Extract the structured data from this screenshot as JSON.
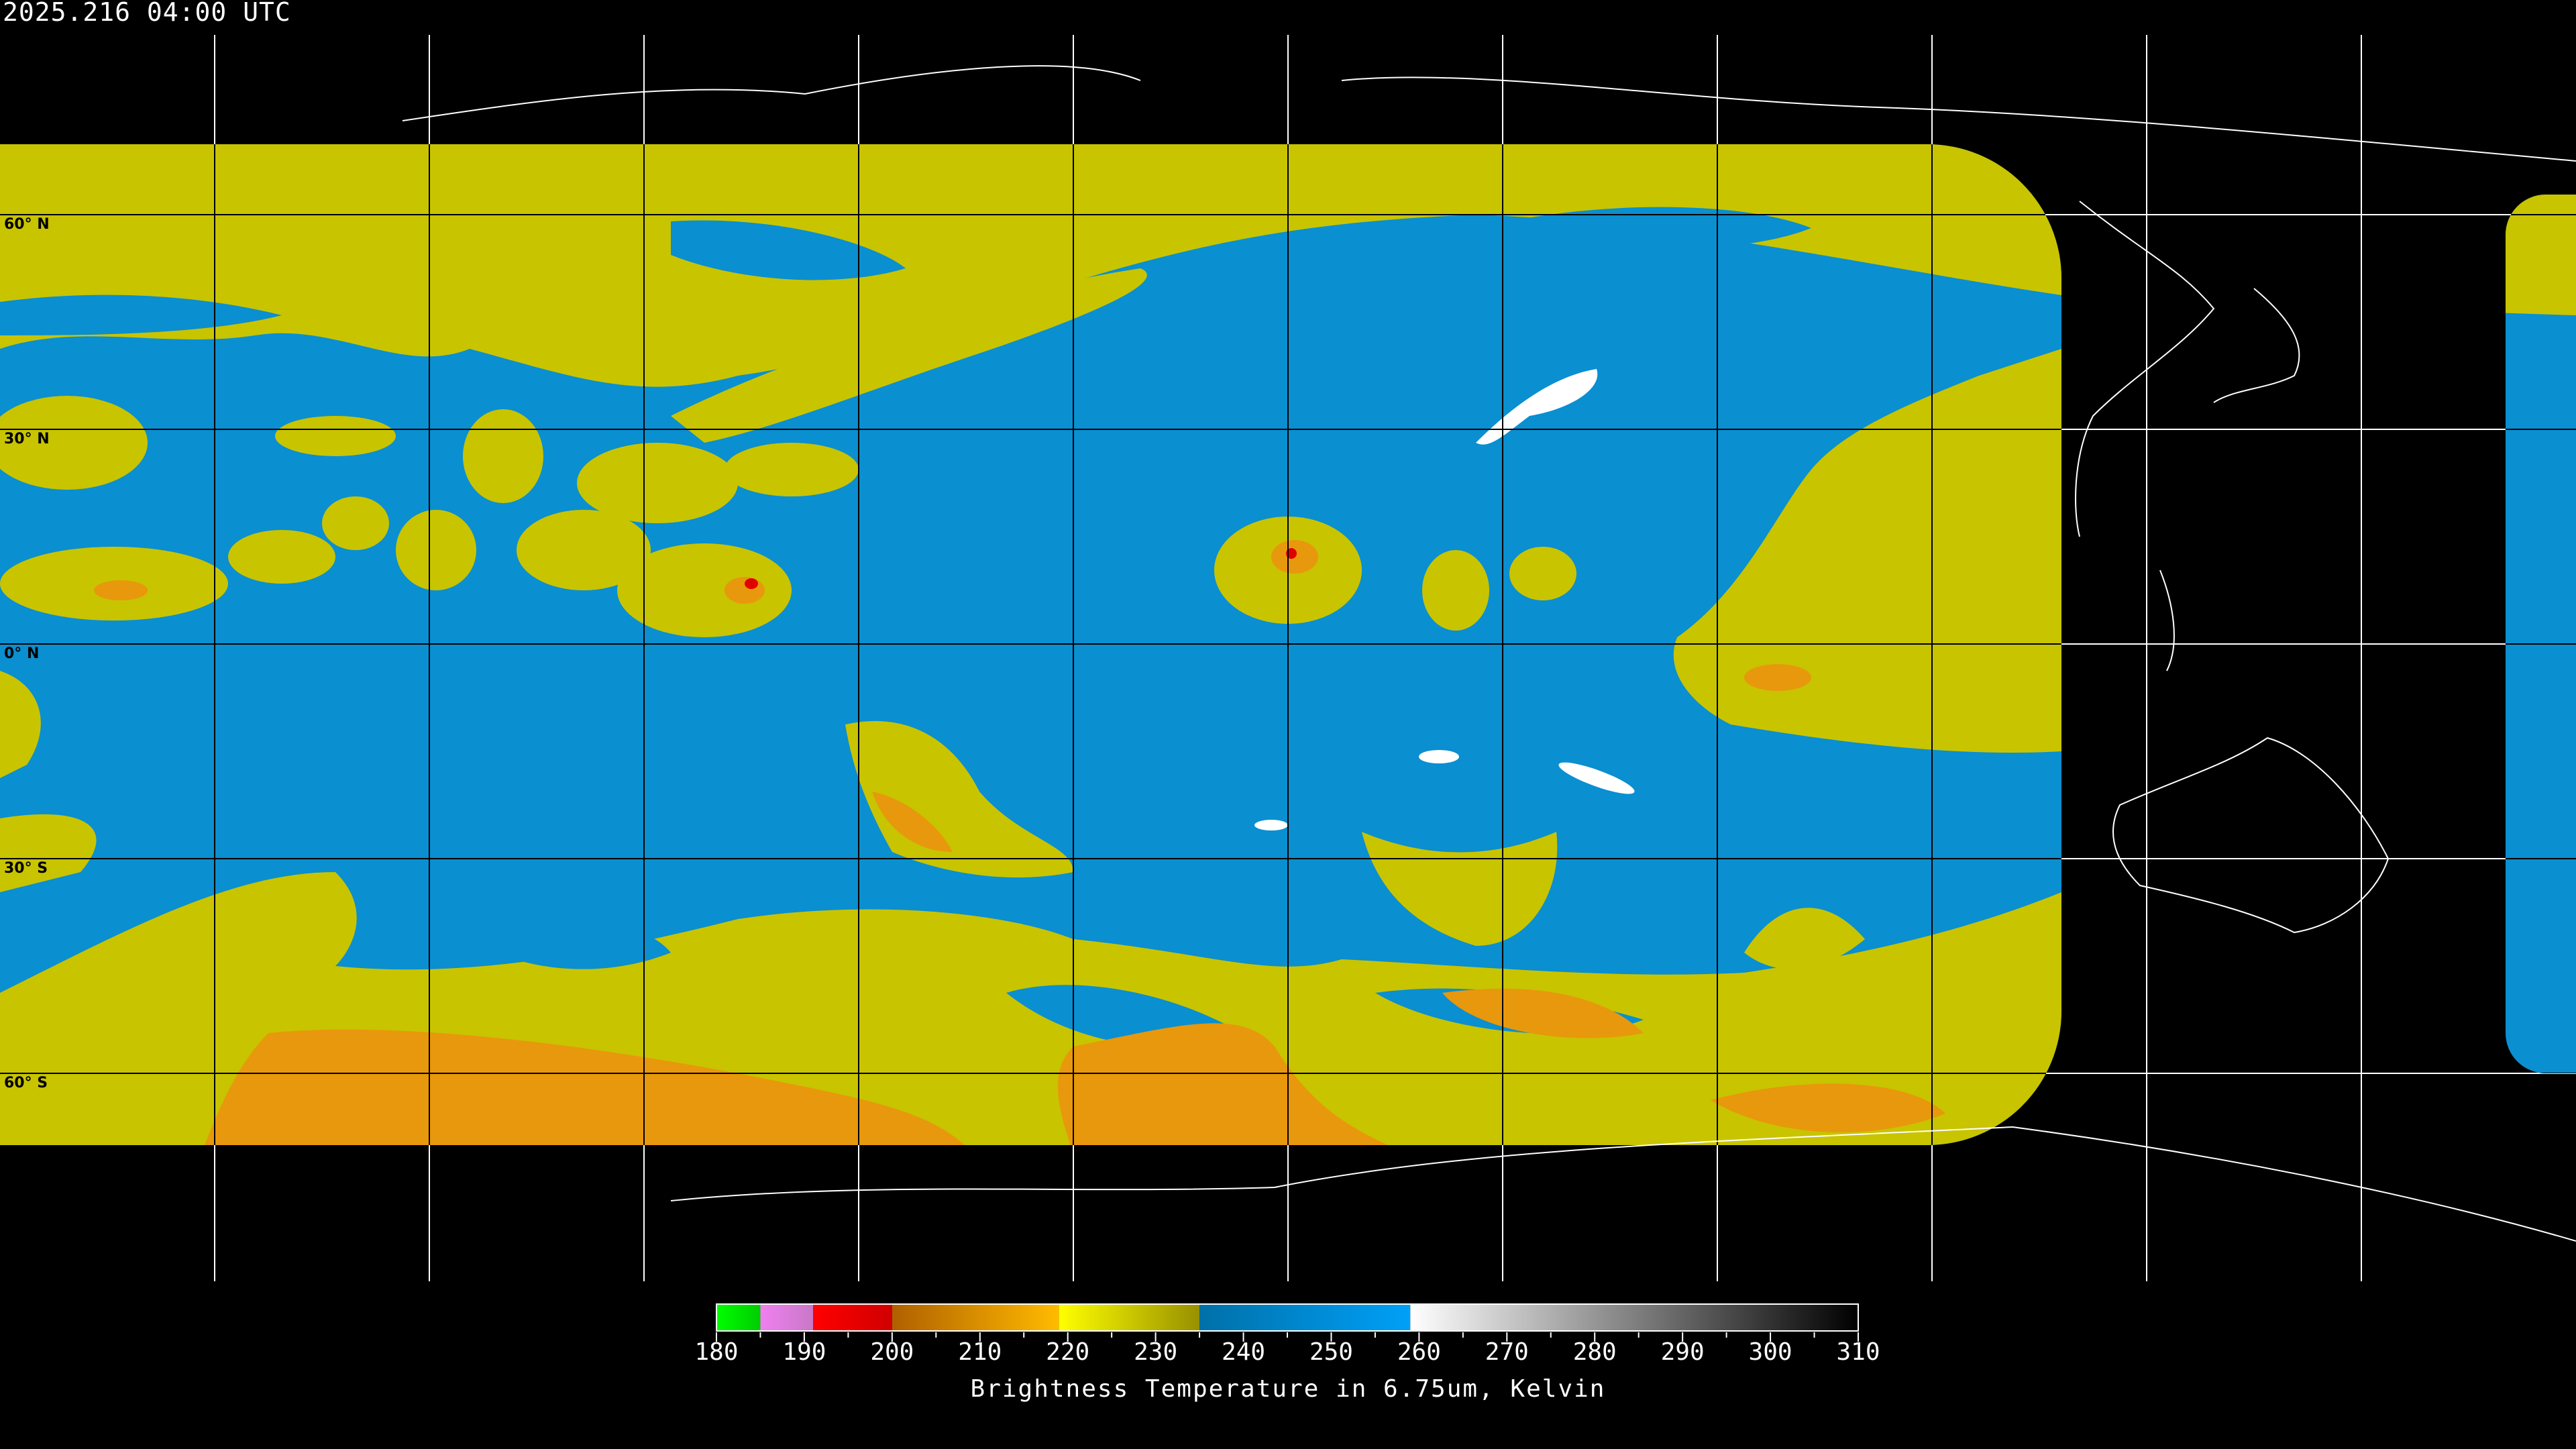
{
  "header": {
    "timestamp": "2025.216 04:00 UTC"
  },
  "map": {
    "projection": "equirectangular",
    "latitude_labels": [
      "60° N",
      "30° N",
      "0° N",
      "30° S",
      "60° S"
    ],
    "grid_spacing_degrees": 15,
    "colors": {
      "background": "#000000",
      "dry_blue": "#0a8fd0",
      "moist_yellow": "#c8c400",
      "cold_orange": "#e8980c",
      "coastline_on_land": "#000000",
      "coastline_off_data": "#ffffff"
    }
  },
  "colorbar": {
    "min": 180,
    "max": 310,
    "tick_labels": [
      "180",
      "190",
      "200",
      "210",
      "220",
      "230",
      "240",
      "250",
      "260",
      "270",
      "280",
      "290",
      "300",
      "310"
    ],
    "title": "Brightness Temperature in 6.75um, Kelvin",
    "segments": [
      {
        "from": 180,
        "to": 185,
        "start": "#00ff00",
        "end": "#00cc00"
      },
      {
        "from": 185,
        "to": 191,
        "start": "#f080f0",
        "end": "#c878c8"
      },
      {
        "from": 191,
        "to": 200,
        "start": "#ff0000",
        "end": "#d00000"
      },
      {
        "from": 200,
        "to": 219,
        "start": "#b06000",
        "end": "#ffbb00"
      },
      {
        "from": 219,
        "to": 235,
        "start": "#ffff00",
        "end": "#989000"
      },
      {
        "from": 235,
        "to": 259,
        "start": "#0070a8",
        "end": "#00a0f8"
      },
      {
        "from": 259,
        "to": 310,
        "start": "#ffffff",
        "end": "#000000"
      }
    ]
  }
}
